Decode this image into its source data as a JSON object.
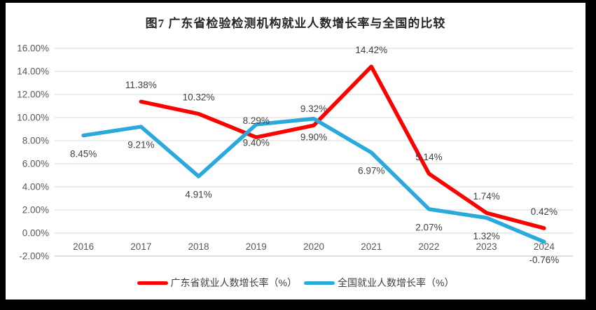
{
  "title": "图7  广东省检验检测机构就业人数增长率与全国的比较",
  "chart_data": {
    "type": "line",
    "categories": [
      "2016",
      "2017",
      "2018",
      "2019",
      "2020",
      "2021",
      "2022",
      "2023",
      "2024"
    ],
    "series": [
      {
        "name": "广东省就业人数增长率（%）",
        "color": "#ff0000",
        "values": [
          null,
          11.38,
          10.32,
          8.29,
          9.32,
          14.42,
          5.14,
          1.74,
          0.42
        ],
        "point_labels": [
          "",
          "11.38%",
          "10.32%",
          "8.29%",
          "9.32%",
          "14.42%",
          "5.14%",
          "1.74%",
          "0.42%"
        ],
        "label_position": "above"
      },
      {
        "name": "全国就业人数增长率（%）",
        "color": "#29a9dc",
        "values": [
          8.45,
          9.21,
          4.91,
          9.4,
          9.9,
          6.97,
          2.07,
          1.32,
          -0.76
        ],
        "point_labels": [
          "8.45%",
          "9.21%",
          "4.91%",
          "9.40%",
          "9.90%",
          "6.97%",
          "2.07%",
          "1.32%",
          "-0.76%"
        ],
        "label_position": "below"
      }
    ],
    "y_axis": {
      "min": -2,
      "max": 16,
      "step": 2,
      "tick_labels": [
        "16.00%",
        "14.00%",
        "12.00%",
        "10.00%",
        "8.00%",
        "6.00%",
        "4.00%",
        "2.00%",
        "0.00%",
        "-2.00%"
      ]
    },
    "xlabel": "",
    "ylabel": "",
    "grid": true,
    "legend_position": "bottom",
    "styles": {
      "grid_color": "#d9d9d9",
      "axis_line_color": "#bfbfbf",
      "axis_text_color": "#595959",
      "data_label_color": "#404040",
      "title_color": "#262626",
      "frame_color": "#000000",
      "background": "#ffffff"
    }
  }
}
